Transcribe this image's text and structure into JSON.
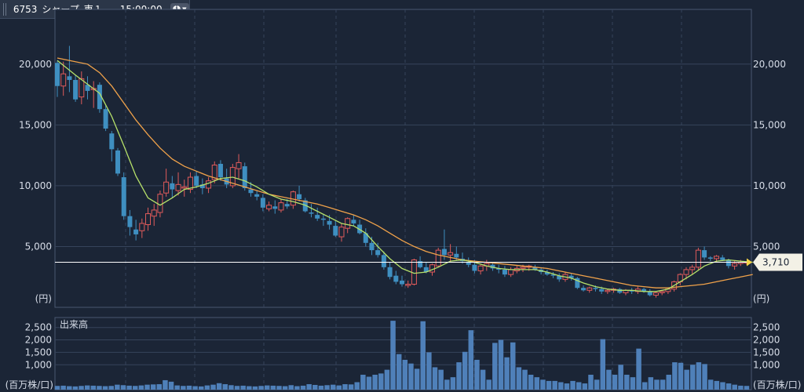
{
  "header": {
    "code": "6753",
    "name": "シャープ",
    "market": "東１",
    "time": "15:00:00"
  },
  "chart_data": [
    {
      "type": "candlestick",
      "title": "",
      "ylabel": "(円)",
      "ylim": [
        0,
        24500
      ],
      "yticks": [
        5000,
        10000,
        15000,
        20000
      ],
      "ytick_labels": [
        "5,000",
        "10,000",
        "15,000",
        "20,000"
      ],
      "last_price": 3710,
      "last_price_label": "3,710",
      "colors": {
        "up": "#e05b5b",
        "down": "#3f8fc0",
        "ma_short": "#b7e26a",
        "ma_long": "#f0a24a",
        "last_line": "#ffffff",
        "tag": "#f3f1e6"
      },
      "candles": [
        [
          20100,
          20300,
          17300,
          18200
        ],
        [
          18200,
          20200,
          17400,
          19200
        ],
        [
          19000,
          21500,
          17700,
          18700
        ],
        [
          18700,
          19100,
          16900,
          17100
        ],
        [
          17300,
          19400,
          16700,
          18800
        ],
        [
          18300,
          19000,
          17100,
          17800
        ],
        [
          17900,
          18600,
          16400,
          18000
        ],
        [
          18300,
          18500,
          16000,
          16300
        ],
        [
          16300,
          16600,
          14500,
          14700
        ],
        [
          14300,
          14500,
          12000,
          13000
        ],
        [
          12900,
          13100,
          10800,
          11000
        ],
        [
          10700,
          11100,
          7200,
          7500
        ],
        [
          7500,
          8000,
          5900,
          6600
        ],
        [
          6400,
          7200,
          5500,
          6000
        ],
        [
          6300,
          7300,
          5700,
          6900
        ],
        [
          6800,
          8200,
          6300,
          7700
        ],
        [
          7500,
          8500,
          6700,
          8000
        ],
        [
          7800,
          9600,
          7400,
          9300
        ],
        [
          9400,
          11400,
          9100,
          10300
        ],
        [
          10200,
          10800,
          9000,
          9700
        ],
        [
          9600,
          11100,
          9200,
          10100
        ],
        [
          9800,
          10500,
          9100,
          9900
        ],
        [
          9700,
          11100,
          9400,
          10700
        ],
        [
          10800,
          11200,
          9800,
          10000
        ],
        [
          10100,
          10600,
          9300,
          9800
        ],
        [
          9800,
          10700,
          9400,
          10400
        ],
        [
          10500,
          12000,
          10200,
          11700
        ],
        [
          11800,
          12100,
          10400,
          10700
        ],
        [
          10600,
          11400,
          9800,
          10100
        ],
        [
          10000,
          11800,
          9800,
          11500
        ],
        [
          11400,
          12600,
          10600,
          11900
        ],
        [
          11600,
          11900,
          9600,
          9800
        ],
        [
          9700,
          10300,
          9100,
          9400
        ],
        [
          9300,
          9600,
          8800,
          9100
        ],
        [
          9000,
          9300,
          7900,
          8200
        ],
        [
          8100,
          8700,
          7900,
          8400
        ],
        [
          8300,
          8800,
          7700,
          8100
        ],
        [
          8000,
          8900,
          7800,
          8600
        ],
        [
          8500,
          8900,
          8100,
          8300
        ],
        [
          8400,
          9600,
          8100,
          9500
        ],
        [
          9300,
          10000,
          8700,
          8900
        ],
        [
          8800,
          9000,
          7800,
          7900
        ],
        [
          7800,
          8500,
          7400,
          7700
        ],
        [
          7600,
          8200,
          7100,
          7300
        ],
        [
          7300,
          7700,
          6700,
          7200
        ],
        [
          7100,
          7600,
          6400,
          6800
        ],
        [
          6700,
          7100,
          5800,
          5900
        ],
        [
          5800,
          6900,
          5400,
          6600
        ],
        [
          6500,
          7400,
          6100,
          7300
        ],
        [
          7200,
          7600,
          6700,
          6900
        ],
        [
          6800,
          7200,
          6000,
          6100
        ],
        [
          6100,
          6500,
          5000,
          5300
        ],
        [
          5300,
          5800,
          4300,
          4700
        ],
        [
          4700,
          5300,
          4100,
          4300
        ],
        [
          4300,
          4600,
          3100,
          3300
        ],
        [
          3300,
          3700,
          2300,
          2500
        ],
        [
          2600,
          3000,
          1900,
          2100
        ],
        [
          2200,
          2600,
          1700,
          1900
        ],
        [
          1800,
          2200,
          1600,
          1900
        ],
        [
          1900,
          4000,
          1800,
          3900
        ],
        [
          3800,
          4200,
          3200,
          3300
        ],
        [
          3300,
          3700,
          2800,
          2900
        ],
        [
          2900,
          3600,
          2600,
          3500
        ],
        [
          3400,
          4900,
          3300,
          4700
        ],
        [
          4800,
          6400,
          3900,
          4300
        ],
        [
          4300,
          5200,
          3700,
          4500
        ],
        [
          4400,
          5000,
          3900,
          4100
        ],
        [
          4000,
          4500,
          3600,
          3800
        ],
        [
          3700,
          4100,
          3300,
          3500
        ],
        [
          3500,
          3900,
          2800,
          3000
        ],
        [
          3000,
          3500,
          2700,
          3400
        ],
        [
          3400,
          3900,
          3000,
          3600
        ],
        [
          3500,
          3700,
          3000,
          3200
        ],
        [
          3200,
          3500,
          2800,
          3100
        ],
        [
          3100,
          3400,
          2500,
          2700
        ],
        [
          2700,
          3300,
          2500,
          3100
        ],
        [
          3000,
          3400,
          2800,
          3200
        ],
        [
          3200,
          3500,
          2900,
          3300
        ],
        [
          3300,
          3500,
          3000,
          3400
        ],
        [
          3300,
          3500,
          3000,
          3100
        ],
        [
          3100,
          3300,
          2700,
          2900
        ],
        [
          2900,
          3100,
          2600,
          2700
        ],
        [
          2700,
          2900,
          2400,
          2600
        ],
        [
          2600,
          2800,
          2100,
          2300
        ],
        [
          2300,
          2900,
          2100,
          2700
        ],
        [
          2600,
          2800,
          2200,
          2400
        ],
        [
          2400,
          2500,
          1500,
          1600
        ],
        [
          1600,
          1800,
          1300,
          1400
        ],
        [
          1400,
          1700,
          1200,
          1600
        ],
        [
          1600,
          1800,
          1300,
          1500
        ],
        [
          1500,
          1700,
          1100,
          1300
        ],
        [
          1300,
          1500,
          1100,
          1400
        ],
        [
          1400,
          1600,
          1200,
          1500
        ],
        [
          1500,
          1600,
          1100,
          1200
        ],
        [
          1200,
          1500,
          1000,
          1400
        ],
        [
          1400,
          1600,
          1100,
          1300
        ],
        [
          1300,
          1700,
          1100,
          1500
        ],
        [
          1500,
          1600,
          1200,
          1300
        ],
        [
          1300,
          1500,
          900,
          1000
        ],
        [
          1000,
          1300,
          800,
          1200
        ],
        [
          1200,
          1400,
          1000,
          1300
        ],
        [
          1300,
          1600,
          1100,
          1500
        ],
        [
          1500,
          2200,
          1300,
          2100
        ],
        [
          2100,
          2800,
          1800,
          2700
        ],
        [
          2700,
          3300,
          2300,
          3100
        ],
        [
          3100,
          3500,
          2700,
          3300
        ],
        [
          3300,
          4900,
          3100,
          4700
        ],
        [
          4700,
          5000,
          3900,
          4100
        ],
        [
          4100,
          4200,
          3800,
          4000
        ],
        [
          4000,
          4300,
          3700,
          4200
        ],
        [
          4100,
          4300,
          3800,
          3900
        ],
        [
          3900,
          4000,
          3200,
          3400
        ],
        [
          3400,
          3800,
          3100,
          3600
        ],
        [
          3600,
          3900,
          3400,
          3700
        ],
        [
          3700,
          3800,
          3500,
          3710
        ]
      ],
      "ma_short": [
        [
          0,
          20300
        ],
        [
          3,
          19100
        ],
        [
          7,
          17600
        ],
        [
          9,
          15700
        ],
        [
          11,
          13300
        ],
        [
          13,
          10800
        ],
        [
          15,
          9000
        ],
        [
          17,
          8400
        ],
        [
          19,
          9000
        ],
        [
          21,
          9700
        ],
        [
          23,
          9900
        ],
        [
          25,
          10200
        ],
        [
          27,
          10600
        ],
        [
          29,
          10700
        ],
        [
          31,
          10400
        ],
        [
          33,
          9900
        ],
        [
          35,
          9300
        ],
        [
          37,
          8900
        ],
        [
          39,
          8700
        ],
        [
          41,
          8400
        ],
        [
          43,
          7900
        ],
        [
          45,
          7400
        ],
        [
          47,
          6900
        ],
        [
          49,
          6700
        ],
        [
          51,
          6100
        ],
        [
          53,
          5000
        ],
        [
          55,
          4000
        ],
        [
          57,
          3200
        ],
        [
          59,
          2800
        ],
        [
          61,
          2900
        ],
        [
          63,
          3300
        ],
        [
          65,
          3800
        ],
        [
          67,
          3900
        ],
        [
          69,
          3700
        ],
        [
          71,
          3400
        ],
        [
          73,
          3200
        ],
        [
          75,
          3100
        ],
        [
          77,
          3100
        ],
        [
          79,
          3100
        ],
        [
          81,
          2900
        ],
        [
          83,
          2600
        ],
        [
          85,
          2400
        ],
        [
          87,
          2000
        ],
        [
          89,
          1700
        ],
        [
          91,
          1500
        ],
        [
          93,
          1400
        ],
        [
          95,
          1400
        ],
        [
          97,
          1300
        ],
        [
          99,
          1300
        ],
        [
          101,
          1500
        ],
        [
          103,
          2100
        ],
        [
          105,
          2700
        ],
        [
          107,
          3400
        ],
        [
          109,
          3800
        ],
        [
          111,
          3900
        ],
        [
          113,
          3800
        ],
        [
          115,
          3710
        ]
      ],
      "ma_long": [
        [
          0,
          20500
        ],
        [
          3,
          20200
        ],
        [
          5,
          20000
        ],
        [
          7,
          19300
        ],
        [
          9,
          18200
        ],
        [
          11,
          16800
        ],
        [
          13,
          15400
        ],
        [
          15,
          14200
        ],
        [
          17,
          13100
        ],
        [
          19,
          12200
        ],
        [
          21,
          11600
        ],
        [
          23,
          11200
        ],
        [
          25,
          10800
        ],
        [
          27,
          10500
        ],
        [
          29,
          10200
        ],
        [
          31,
          9900
        ],
        [
          33,
          9600
        ],
        [
          35,
          9300
        ],
        [
          37,
          9100
        ],
        [
          39,
          8900
        ],
        [
          41,
          8700
        ],
        [
          43,
          8500
        ],
        [
          45,
          8200
        ],
        [
          47,
          7900
        ],
        [
          49,
          7600
        ],
        [
          51,
          7200
        ],
        [
          53,
          6700
        ],
        [
          55,
          6100
        ],
        [
          57,
          5500
        ],
        [
          59,
          5000
        ],
        [
          61,
          4600
        ],
        [
          63,
          4300
        ],
        [
          65,
          4100
        ],
        [
          67,
          3900
        ],
        [
          69,
          3800
        ],
        [
          71,
          3700
        ],
        [
          73,
          3600
        ],
        [
          75,
          3500
        ],
        [
          77,
          3400
        ],
        [
          79,
          3300
        ],
        [
          81,
          3200
        ],
        [
          83,
          3000
        ],
        [
          85,
          2800
        ],
        [
          87,
          2600
        ],
        [
          89,
          2400
        ],
        [
          91,
          2200
        ],
        [
          93,
          2000
        ],
        [
          95,
          1800
        ],
        [
          97,
          1700
        ],
        [
          99,
          1600
        ],
        [
          101,
          1600
        ],
        [
          103,
          1700
        ],
        [
          105,
          1800
        ],
        [
          107,
          1900
        ],
        [
          109,
          2100
        ],
        [
          111,
          2300
        ],
        [
          113,
          2500
        ],
        [
          115,
          2700
        ]
      ]
    },
    {
      "type": "bar",
      "title": "出来高",
      "ylabel": "(百万株/口)",
      "ylim": [
        0,
        2900
      ],
      "yticks": [
        1000,
        1500,
        2000,
        2500
      ],
      "ytick_labels": [
        "1,000",
        "1,500",
        "2,000",
        "2,500"
      ],
      "color": "#4f80b9",
      "values": [
        150,
        160,
        140,
        130,
        150,
        170,
        160,
        150,
        140,
        150,
        200,
        180,
        160,
        150,
        170,
        200,
        210,
        220,
        380,
        320,
        170,
        150,
        160,
        140,
        130,
        170,
        200,
        260,
        220,
        180,
        150,
        160,
        140,
        130,
        150,
        170,
        160,
        150,
        140,
        180,
        140,
        160,
        220,
        190,
        160,
        180,
        200,
        170,
        220,
        210,
        300,
        600,
        520,
        600,
        650,
        800,
        2770,
        1430,
        1200,
        1050,
        840,
        2750,
        1500,
        900,
        800,
        400,
        500,
        1100,
        1520,
        2390,
        1200,
        800,
        400,
        1880,
        2000,
        1300,
        1900,
        900,
        800,
        600,
        500,
        400,
        350,
        350,
        300,
        250,
        350,
        300,
        250,
        600,
        400,
        2030,
        800,
        600,
        1000,
        600,
        500,
        1650,
        300,
        500,
        400,
        400,
        600,
        1100,
        1080,
        800,
        1000,
        1100,
        1030,
        400,
        350,
        300,
        250,
        200,
        160,
        150
      ]
    }
  ]
}
